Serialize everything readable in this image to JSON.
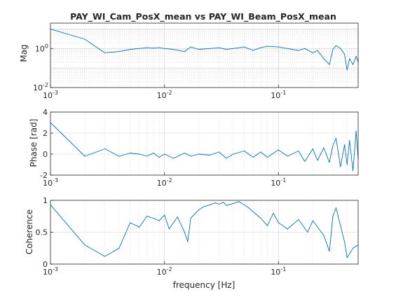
{
  "colors": {
    "line": "#0072bd",
    "axis": "#262626",
    "grid": "#d0d0d0",
    "background": "#ffffff"
  },
  "chart_data": [
    {
      "type": "line",
      "title": "PAY_WI_Cam_PosX_mean vs PAY_WI_Beam_PosX_mean",
      "xlabel": "",
      "ylabel": "Mag",
      "xscale": "log",
      "yscale": "log",
      "xlim": [
        0.001,
        0.5
      ],
      "ylim": [
        0.01,
        20
      ],
      "grid": true,
      "x_ticks": [
        {
          "value": 0.001,
          "base": "10",
          "exp": "-3"
        },
        {
          "value": 0.01,
          "base": "10",
          "exp": "-2"
        },
        {
          "value": 0.1,
          "base": "10",
          "exp": "-1"
        }
      ],
      "y_ticks": [
        {
          "value": 0.01,
          "base": "10",
          "exp": "-2"
        },
        {
          "value": 1,
          "base": "10",
          "exp": "0"
        }
      ],
      "series": [
        {
          "x": [
            0.001,
            0.002,
            0.003,
            0.004,
            0.005,
            0.006,
            0.007,
            0.008,
            0.009,
            0.01,
            0.012,
            0.015,
            0.017,
            0.02,
            0.025,
            0.03,
            0.035,
            0.04,
            0.05,
            0.06,
            0.07,
            0.08,
            0.1,
            0.12,
            0.15,
            0.17,
            0.2,
            0.22,
            0.25,
            0.28,
            0.3,
            0.32,
            0.35,
            0.38,
            0.4,
            0.42,
            0.45,
            0.48,
            0.5
          ],
          "y": [
            10,
            3,
            0.6,
            0.7,
            0.9,
            1.0,
            1.1,
            1.05,
            1.1,
            1.0,
            0.9,
            0.7,
            1.2,
            0.9,
            1.0,
            1.1,
            0.9,
            1.0,
            1.2,
            0.8,
            1.1,
            1.3,
            1.2,
            1.0,
            0.8,
            1.0,
            0.6,
            0.8,
            0.3,
            0.15,
            0.9,
            1.4,
            1.0,
            0.5,
            0.08,
            0.3,
            0.15,
            0.4,
            0.2
          ]
        }
      ]
    },
    {
      "type": "line",
      "title": "",
      "xlabel": "",
      "ylabel": "Phase [rad]",
      "xscale": "log",
      "yscale": "linear",
      "xlim": [
        0.001,
        0.5
      ],
      "ylim": [
        -2,
        4
      ],
      "grid": true,
      "x_ticks": [
        {
          "value": 0.001,
          "base": "10",
          "exp": "-3"
        },
        {
          "value": 0.01,
          "base": "10",
          "exp": "-2"
        },
        {
          "value": 0.1,
          "base": "10",
          "exp": "-1"
        }
      ],
      "y_ticks": [
        {
          "value": -2,
          "label": "-2"
        },
        {
          "value": 0,
          "label": "0"
        },
        {
          "value": 2,
          "label": "2"
        },
        {
          "value": 4,
          "label": "4"
        }
      ],
      "series": [
        {
          "x": [
            0.001,
            0.002,
            0.003,
            0.004,
            0.005,
            0.006,
            0.007,
            0.008,
            0.009,
            0.01,
            0.012,
            0.015,
            0.017,
            0.02,
            0.025,
            0.03,
            0.035,
            0.04,
            0.05,
            0.06,
            0.07,
            0.08,
            0.1,
            0.12,
            0.15,
            0.17,
            0.2,
            0.22,
            0.25,
            0.28,
            0.3,
            0.32,
            0.35,
            0.38,
            0.4,
            0.42,
            0.45,
            0.48,
            0.5
          ],
          "y": [
            3.0,
            -0.2,
            0.5,
            -0.2,
            0.1,
            0.0,
            -0.2,
            0.1,
            -0.3,
            0.0,
            -0.4,
            0.1,
            -0.2,
            0.0,
            -0.1,
            0.2,
            -0.4,
            0.0,
            0.3,
            -0.3,
            0.2,
            -0.3,
            0.4,
            -0.2,
            0.3,
            -0.7,
            0.5,
            -0.6,
            0.6,
            -0.8,
            0.8,
            1.5,
            -1.2,
            0.9,
            -1.0,
            1.3,
            -1.6,
            2.2,
            -0.5
          ]
        }
      ]
    },
    {
      "type": "line",
      "title": "",
      "xlabel": "frequency [Hz]",
      "ylabel": "Coherence",
      "xscale": "log",
      "yscale": "linear",
      "xlim": [
        0.001,
        0.5
      ],
      "ylim": [
        0,
        1
      ],
      "grid": true,
      "x_ticks": [
        {
          "value": 0.001,
          "base": "10",
          "exp": "-3"
        },
        {
          "value": 0.01,
          "base": "10",
          "exp": "-2"
        },
        {
          "value": 0.1,
          "base": "10",
          "exp": "-1"
        }
      ],
      "y_ticks": [
        {
          "value": 0,
          "label": "0"
        },
        {
          "value": 0.5,
          "label": "0.5"
        },
        {
          "value": 1,
          "label": "1"
        }
      ],
      "series": [
        {
          "x": [
            0.001,
            0.002,
            0.003,
            0.004,
            0.005,
            0.006,
            0.007,
            0.008,
            0.009,
            0.01,
            0.011,
            0.012,
            0.013,
            0.015,
            0.016,
            0.017,
            0.02,
            0.022,
            0.025,
            0.028,
            0.03,
            0.033,
            0.035,
            0.04,
            0.045,
            0.05,
            0.055,
            0.06,
            0.07,
            0.08,
            0.09,
            0.1,
            0.12,
            0.15,
            0.18,
            0.2,
            0.25,
            0.28,
            0.3,
            0.32,
            0.35,
            0.38,
            0.4,
            0.45,
            0.5
          ],
          "y": [
            0.93,
            0.3,
            0.12,
            0.25,
            0.65,
            0.58,
            0.75,
            0.72,
            0.68,
            0.77,
            0.55,
            0.65,
            0.74,
            0.5,
            0.35,
            0.72,
            0.85,
            0.9,
            0.93,
            0.96,
            0.94,
            0.97,
            0.92,
            0.95,
            0.98,
            0.93,
            0.88,
            0.82,
            0.72,
            0.6,
            0.8,
            0.65,
            0.55,
            0.7,
            0.5,
            0.68,
            0.45,
            0.2,
            0.75,
            0.88,
            0.6,
            0.35,
            0.1,
            0.25,
            0.3
          ]
        }
      ]
    }
  ]
}
